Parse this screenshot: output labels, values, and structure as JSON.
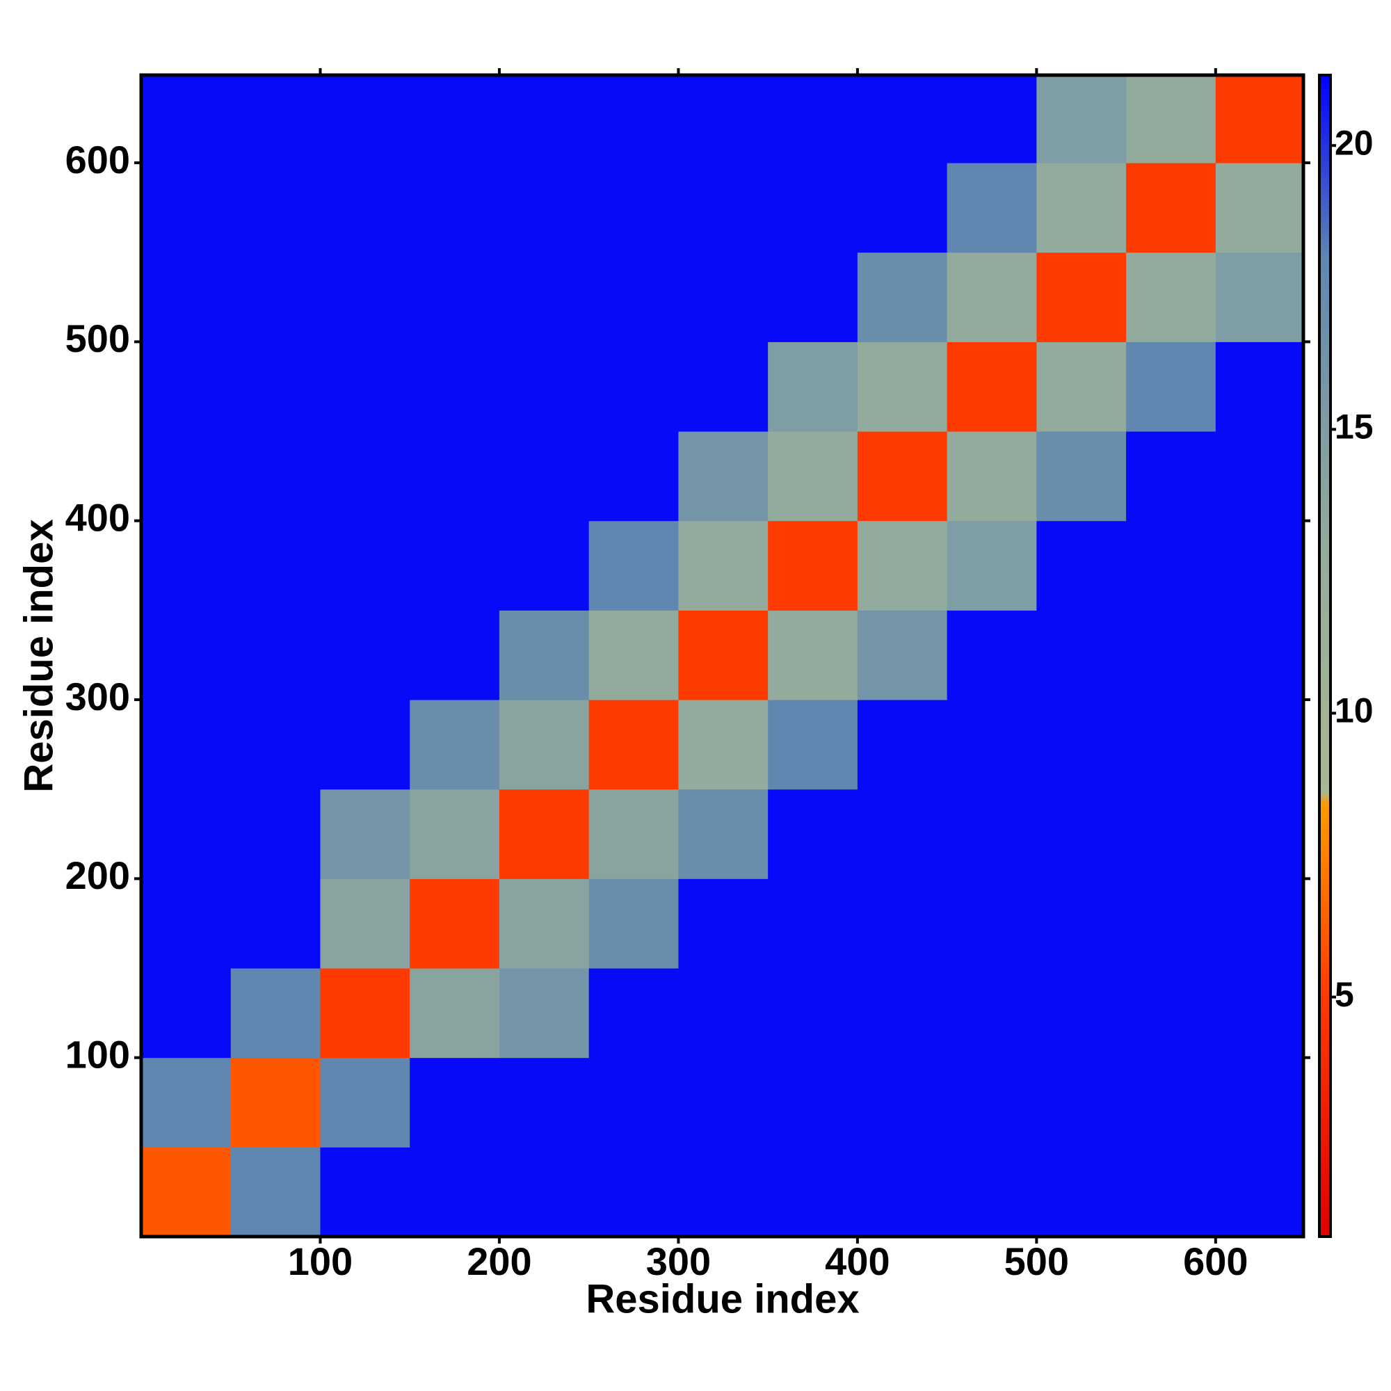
{
  "chart_data": {
    "type": "heatmap",
    "xlabel": "Residue index",
    "ylabel": "Residue index",
    "xlim": [
      0,
      649
    ],
    "ylim": [
      0,
      649
    ],
    "xticks": [
      100,
      200,
      300,
      400,
      500,
      600
    ],
    "yticks": [
      100,
      200,
      300,
      400,
      500,
      600
    ],
    "xbins": [
      0,
      50,
      100,
      150,
      200,
      250,
      300,
      350,
      400,
      450,
      500,
      550,
      600,
      650
    ],
    "ybins": [
      0,
      50,
      100,
      150,
      200,
      250,
      300,
      350,
      400,
      450,
      500,
      550,
      600,
      650
    ],
    "z": [
      [
        6,
        18,
        21,
        21,
        21,
        21,
        21,
        21,
        21,
        21,
        21,
        21,
        21
      ],
      [
        18,
        6,
        18,
        21,
        21,
        21,
        21,
        21,
        21,
        21,
        21,
        21,
        21
      ],
      [
        21,
        18,
        5,
        14,
        16,
        21,
        21,
        21,
        21,
        21,
        21,
        21,
        21
      ],
      [
        21,
        21,
        14,
        5,
        14,
        17,
        21,
        21,
        21,
        21,
        21,
        21,
        21
      ],
      [
        21,
        21,
        16,
        14,
        5,
        14,
        17,
        21,
        21,
        21,
        21,
        21,
        21
      ],
      [
        21,
        21,
        21,
        17,
        14,
        5,
        13,
        18,
        21,
        21,
        21,
        21,
        21
      ],
      [
        21,
        21,
        21,
        21,
        17,
        13,
        5,
        13,
        16,
        21,
        21,
        21,
        21
      ],
      [
        21,
        21,
        21,
        21,
        21,
        18,
        13,
        5,
        13,
        15,
        21,
        21,
        21
      ],
      [
        21,
        21,
        21,
        21,
        21,
        21,
        16,
        13,
        5,
        13,
        17,
        21,
        21
      ],
      [
        21,
        21,
        21,
        21,
        21,
        21,
        21,
        15,
        13,
        5,
        13,
        18,
        21
      ],
      [
        21,
        21,
        21,
        21,
        21,
        21,
        21,
        21,
        17,
        13,
        5,
        13,
        15
      ],
      [
        21,
        21,
        21,
        21,
        21,
        21,
        21,
        21,
        21,
        18,
        13,
        5,
        13
      ],
      [
        21,
        21,
        21,
        21,
        21,
        21,
        21,
        21,
        21,
        21,
        15,
        13,
        5
      ]
    ],
    "zlim": [
      0.78,
      21.24
    ],
    "zticks": [
      5,
      10,
      15,
      20
    ],
    "colorscale": [
      [
        0.78,
        "#e00000"
      ],
      [
        5,
        "#ff3a00"
      ],
      [
        8.4,
        "#ff9a00"
      ],
      [
        8.6,
        "#a8b890"
      ],
      [
        13,
        "#93ab9c"
      ],
      [
        18,
        "#5f87b0"
      ],
      [
        21.24,
        "#0000ff"
      ]
    ]
  }
}
